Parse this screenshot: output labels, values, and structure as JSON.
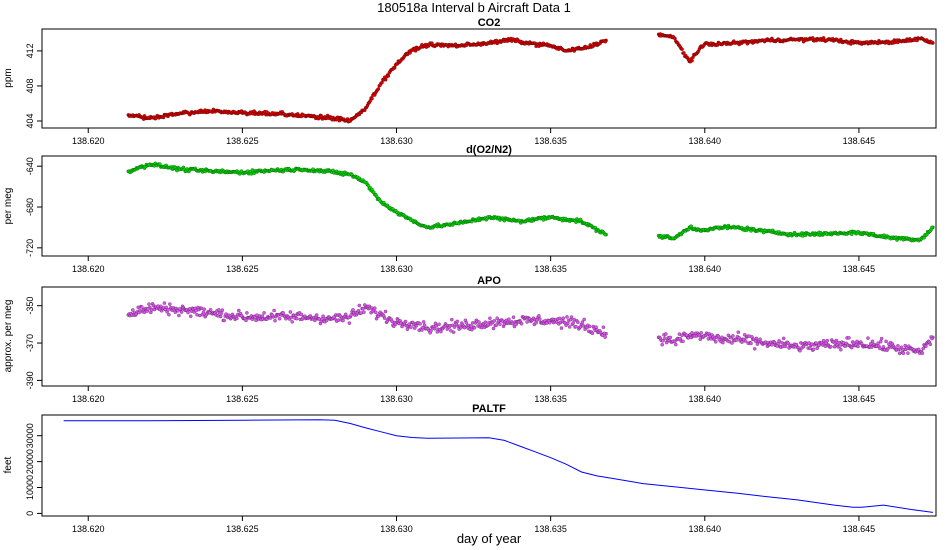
{
  "page_title": "180518a   Interval b Aircraft Data 1",
  "xlabel": "day of year",
  "colors": {
    "co2": "#e00000",
    "o2n2": "#00dd00",
    "apo": "#dd55ee",
    "paltf": "#0000ff",
    "axis": "#000000"
  },
  "chart_data": [
    {
      "type": "scatter",
      "title": "CO2",
      "ylabel": "ppm",
      "xlim": [
        138.6185,
        138.6475
      ],
      "ylim": [
        403.2,
        414.5
      ],
      "x_ticks": [
        "138.620",
        "138.625",
        "138.630",
        "138.635",
        "138.640",
        "138.645"
      ],
      "y_ticks": [
        "404",
        "408",
        "412"
      ],
      "grid": false,
      "series": [
        {
          "color": "#e00000",
          "x": [
            138.6213,
            138.622,
            138.623,
            138.624,
            138.625,
            138.626,
            138.627,
            138.628,
            138.6285,
            138.629,
            138.6295,
            138.63,
            138.6305,
            138.631,
            138.632,
            138.633,
            138.6338,
            138.634,
            138.635,
            138.6355,
            138.6362,
            138.6368
          ],
          "y": [
            404.7,
            404.3,
            404.9,
            405.1,
            404.9,
            404.9,
            404.6,
            404.3,
            404.0,
            405.5,
            408.3,
            410.5,
            412.1,
            412.7,
            412.6,
            412.9,
            413.3,
            413.0,
            412.6,
            412.0,
            412.4,
            413.2
          ]
        },
        {
          "color": "#e00000",
          "x": [
            138.6385,
            138.639,
            138.6395,
            138.64,
            138.6405,
            138.641,
            138.642,
            138.643,
            138.644,
            138.645,
            138.646,
            138.647,
            138.6474
          ],
          "y": [
            413.9,
            413.5,
            410.8,
            412.8,
            412.8,
            412.9,
            413.2,
            413.3,
            413.3,
            412.9,
            413.0,
            413.4,
            412.9
          ]
        }
      ]
    },
    {
      "type": "scatter",
      "title": "d(O2/N2)",
      "ylabel": "per meg",
      "xlim": [
        138.6185,
        138.6475
      ],
      "ylim": [
        -728,
        -630
      ],
      "x_ticks": [
        "138.620",
        "138.625",
        "138.630",
        "138.635",
        "138.640",
        "138.645"
      ],
      "y_ticks": [
        "-640",
        "-680",
        "-720"
      ],
      "grid": false,
      "series": [
        {
          "color": "#00dd00",
          "x": [
            138.6213,
            138.622,
            138.623,
            138.624,
            138.625,
            138.626,
            138.627,
            138.628,
            138.6285,
            138.629,
            138.6295,
            138.63,
            138.6305,
            138.631,
            138.632,
            138.633,
            138.634,
            138.635,
            138.636,
            138.6368
          ],
          "y": [
            -645,
            -638,
            -643,
            -645,
            -646,
            -644,
            -643,
            -646,
            -648,
            -656,
            -675,
            -685,
            -693,
            -700,
            -696,
            -690,
            -694,
            -690,
            -694,
            -707
          ]
        },
        {
          "color": "#00dd00",
          "x": [
            138.6385,
            138.639,
            138.6395,
            138.64,
            138.6405,
            138.641,
            138.642,
            138.643,
            138.644,
            138.645,
            138.646,
            138.647,
            138.6474
          ],
          "y": [
            -708,
            -711,
            -700,
            -703,
            -700,
            -700,
            -704,
            -707,
            -706,
            -705,
            -710,
            -712,
            -700
          ]
        }
      ]
    },
    {
      "type": "scatter",
      "title": "APO",
      "ylabel": "approx. per meg",
      "xlim": [
        138.6185,
        138.6475
      ],
      "ylim": [
        -393,
        -340
      ],
      "x_ticks": [
        "138.620",
        "138.625",
        "138.630",
        "138.635",
        "138.640",
        "138.645"
      ],
      "y_ticks": [
        "-350",
        "-370",
        "-390"
      ],
      "grid": false,
      "series": [
        {
          "color": "#dd55ee",
          "x": [
            138.6213,
            138.622,
            138.623,
            138.624,
            138.625,
            138.626,
            138.627,
            138.628,
            138.6285,
            138.629,
            138.6295,
            138.63,
            138.6305,
            138.631,
            138.632,
            138.633,
            138.634,
            138.635,
            138.636,
            138.6368
          ],
          "y": [
            -355,
            -351,
            -352,
            -354,
            -356,
            -356,
            -356,
            -357,
            -356,
            -351,
            -355,
            -359,
            -359,
            -362,
            -361,
            -359,
            -358,
            -358,
            -360,
            -365
          ]
        },
        {
          "color": "#dd55ee",
          "x": [
            138.6385,
            138.639,
            138.6395,
            138.64,
            138.6405,
            138.641,
            138.642,
            138.643,
            138.644,
            138.645,
            138.646,
            138.647,
            138.6474
          ],
          "y": [
            -367,
            -369,
            -366,
            -366,
            -368,
            -368,
            -370,
            -372,
            -371,
            -370,
            -372,
            -375,
            -367
          ]
        }
      ]
    },
    {
      "type": "line",
      "title": "PALTF",
      "ylabel": "feet",
      "xlim": [
        138.6185,
        138.6475
      ],
      "ylim": [
        -1000,
        38000
      ],
      "x_ticks": [
        "138.620",
        "138.625",
        "138.630",
        "138.635",
        "138.640",
        "138.645"
      ],
      "y_ticks": [
        "0",
        "10000",
        "20000",
        "30000"
      ],
      "grid": false,
      "series": [
        {
          "color": "#0000ff",
          "x": [
            138.6192,
            138.622,
            138.625,
            138.6275,
            138.628,
            138.6285,
            138.629,
            138.6295,
            138.63,
            138.6305,
            138.631,
            138.632,
            138.633,
            138.6335,
            138.634,
            138.6345,
            138.635,
            138.6355,
            138.636,
            138.6365,
            138.637,
            138.638,
            138.639,
            138.6399,
            138.6409,
            138.641,
            138.642,
            138.643,
            138.6442,
            138.6448,
            138.6451,
            138.6458,
            138.6467,
            138.6474
          ],
          "y": [
            35800,
            35800,
            36000,
            36200,
            36000,
            34700,
            33000,
            31500,
            30000,
            29300,
            29000,
            29100,
            29200,
            28200,
            26000,
            23800,
            21500,
            19000,
            16000,
            14500,
            13500,
            11500,
            10300,
            9200,
            8000,
            7900,
            6500,
            5200,
            3200,
            2400,
            2400,
            3200,
            1500,
            400
          ]
        }
      ]
    }
  ]
}
